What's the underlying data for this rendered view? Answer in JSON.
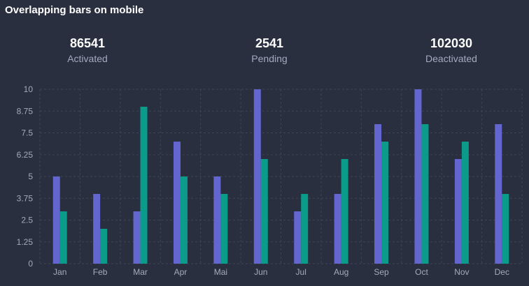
{
  "title": "Overlapping bars on mobile",
  "stats": [
    {
      "value": "86541",
      "label": "Activated"
    },
    {
      "value": "2541",
      "label": "Pending"
    },
    {
      "value": "102030",
      "label": "Deactivated"
    }
  ],
  "colors": {
    "background": "#292f3f",
    "series_a": "#6466d0",
    "series_b": "#0b9b8a",
    "grid": "#3d4456"
  },
  "chart_data": {
    "type": "bar",
    "categories": [
      "Jan",
      "Feb",
      "Mar",
      "Apr",
      "Mai",
      "Jun",
      "Jul",
      "Aug",
      "Sep",
      "Oct",
      "Nov",
      "Dec"
    ],
    "series": [
      {
        "values": [
          5,
          4,
          3,
          7,
          5,
          10,
          3,
          4,
          8,
          10,
          6,
          8
        ]
      },
      {
        "values": [
          3,
          2,
          9,
          5,
          4,
          6,
          4,
          6,
          7,
          8,
          7,
          4
        ]
      }
    ],
    "yticks": [
      "0",
      "1.25",
      "2.5",
      "3.75",
      "5",
      "6.25",
      "7.5",
      "8.75",
      "10"
    ],
    "ylim": [
      0,
      10
    ],
    "grid": true,
    "legend": false
  }
}
